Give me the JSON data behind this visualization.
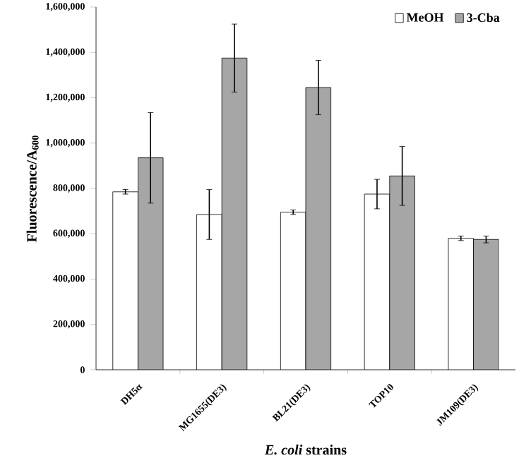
{
  "chart_data": {
    "type": "bar",
    "xlabel": "*E. coli* strains",
    "ylabel": "Fluorescence/A$_{600}$",
    "categories": [
      "DH5α",
      "MG1655(DE3)",
      "BL21(DE3)",
      "TOP10",
      "JM109(DE3)"
    ],
    "series": [
      {
        "name": "MeOH",
        "color": "#ffffff",
        "values": [
          785000,
          685000,
          695000,
          775000,
          580000
        ],
        "errors": [
          10000,
          110000,
          10000,
          65000,
          10000
        ]
      },
      {
        "name": "3-Cba",
        "color": "#a6a6a6",
        "values": [
          935000,
          1375000,
          1245000,
          855000,
          575000
        ],
        "errors": [
          200000,
          150000,
          120000,
          130000,
          15000
        ]
      }
    ],
    "ylim": [
      0,
      1600000
    ],
    "yticks": [
      0,
      {
        "value": 200000,
        "label": "200,000"
      },
      {
        "value": 400000,
        "label": "400,000"
      },
      {
        "value": 600000,
        "label": "600,000"
      },
      {
        "value": 800000,
        "label": "800,000"
      },
      {
        "value": 1000000,
        "label": "1,000,000"
      },
      {
        "value": 1200000,
        "label": "1,200,000"
      },
      {
        "value": 1400000,
        "label": "1,400,000"
      },
      {
        "value": 1600000,
        "label": "1,600,000"
      }
    ],
    "grid": false,
    "legend": "top right"
  }
}
